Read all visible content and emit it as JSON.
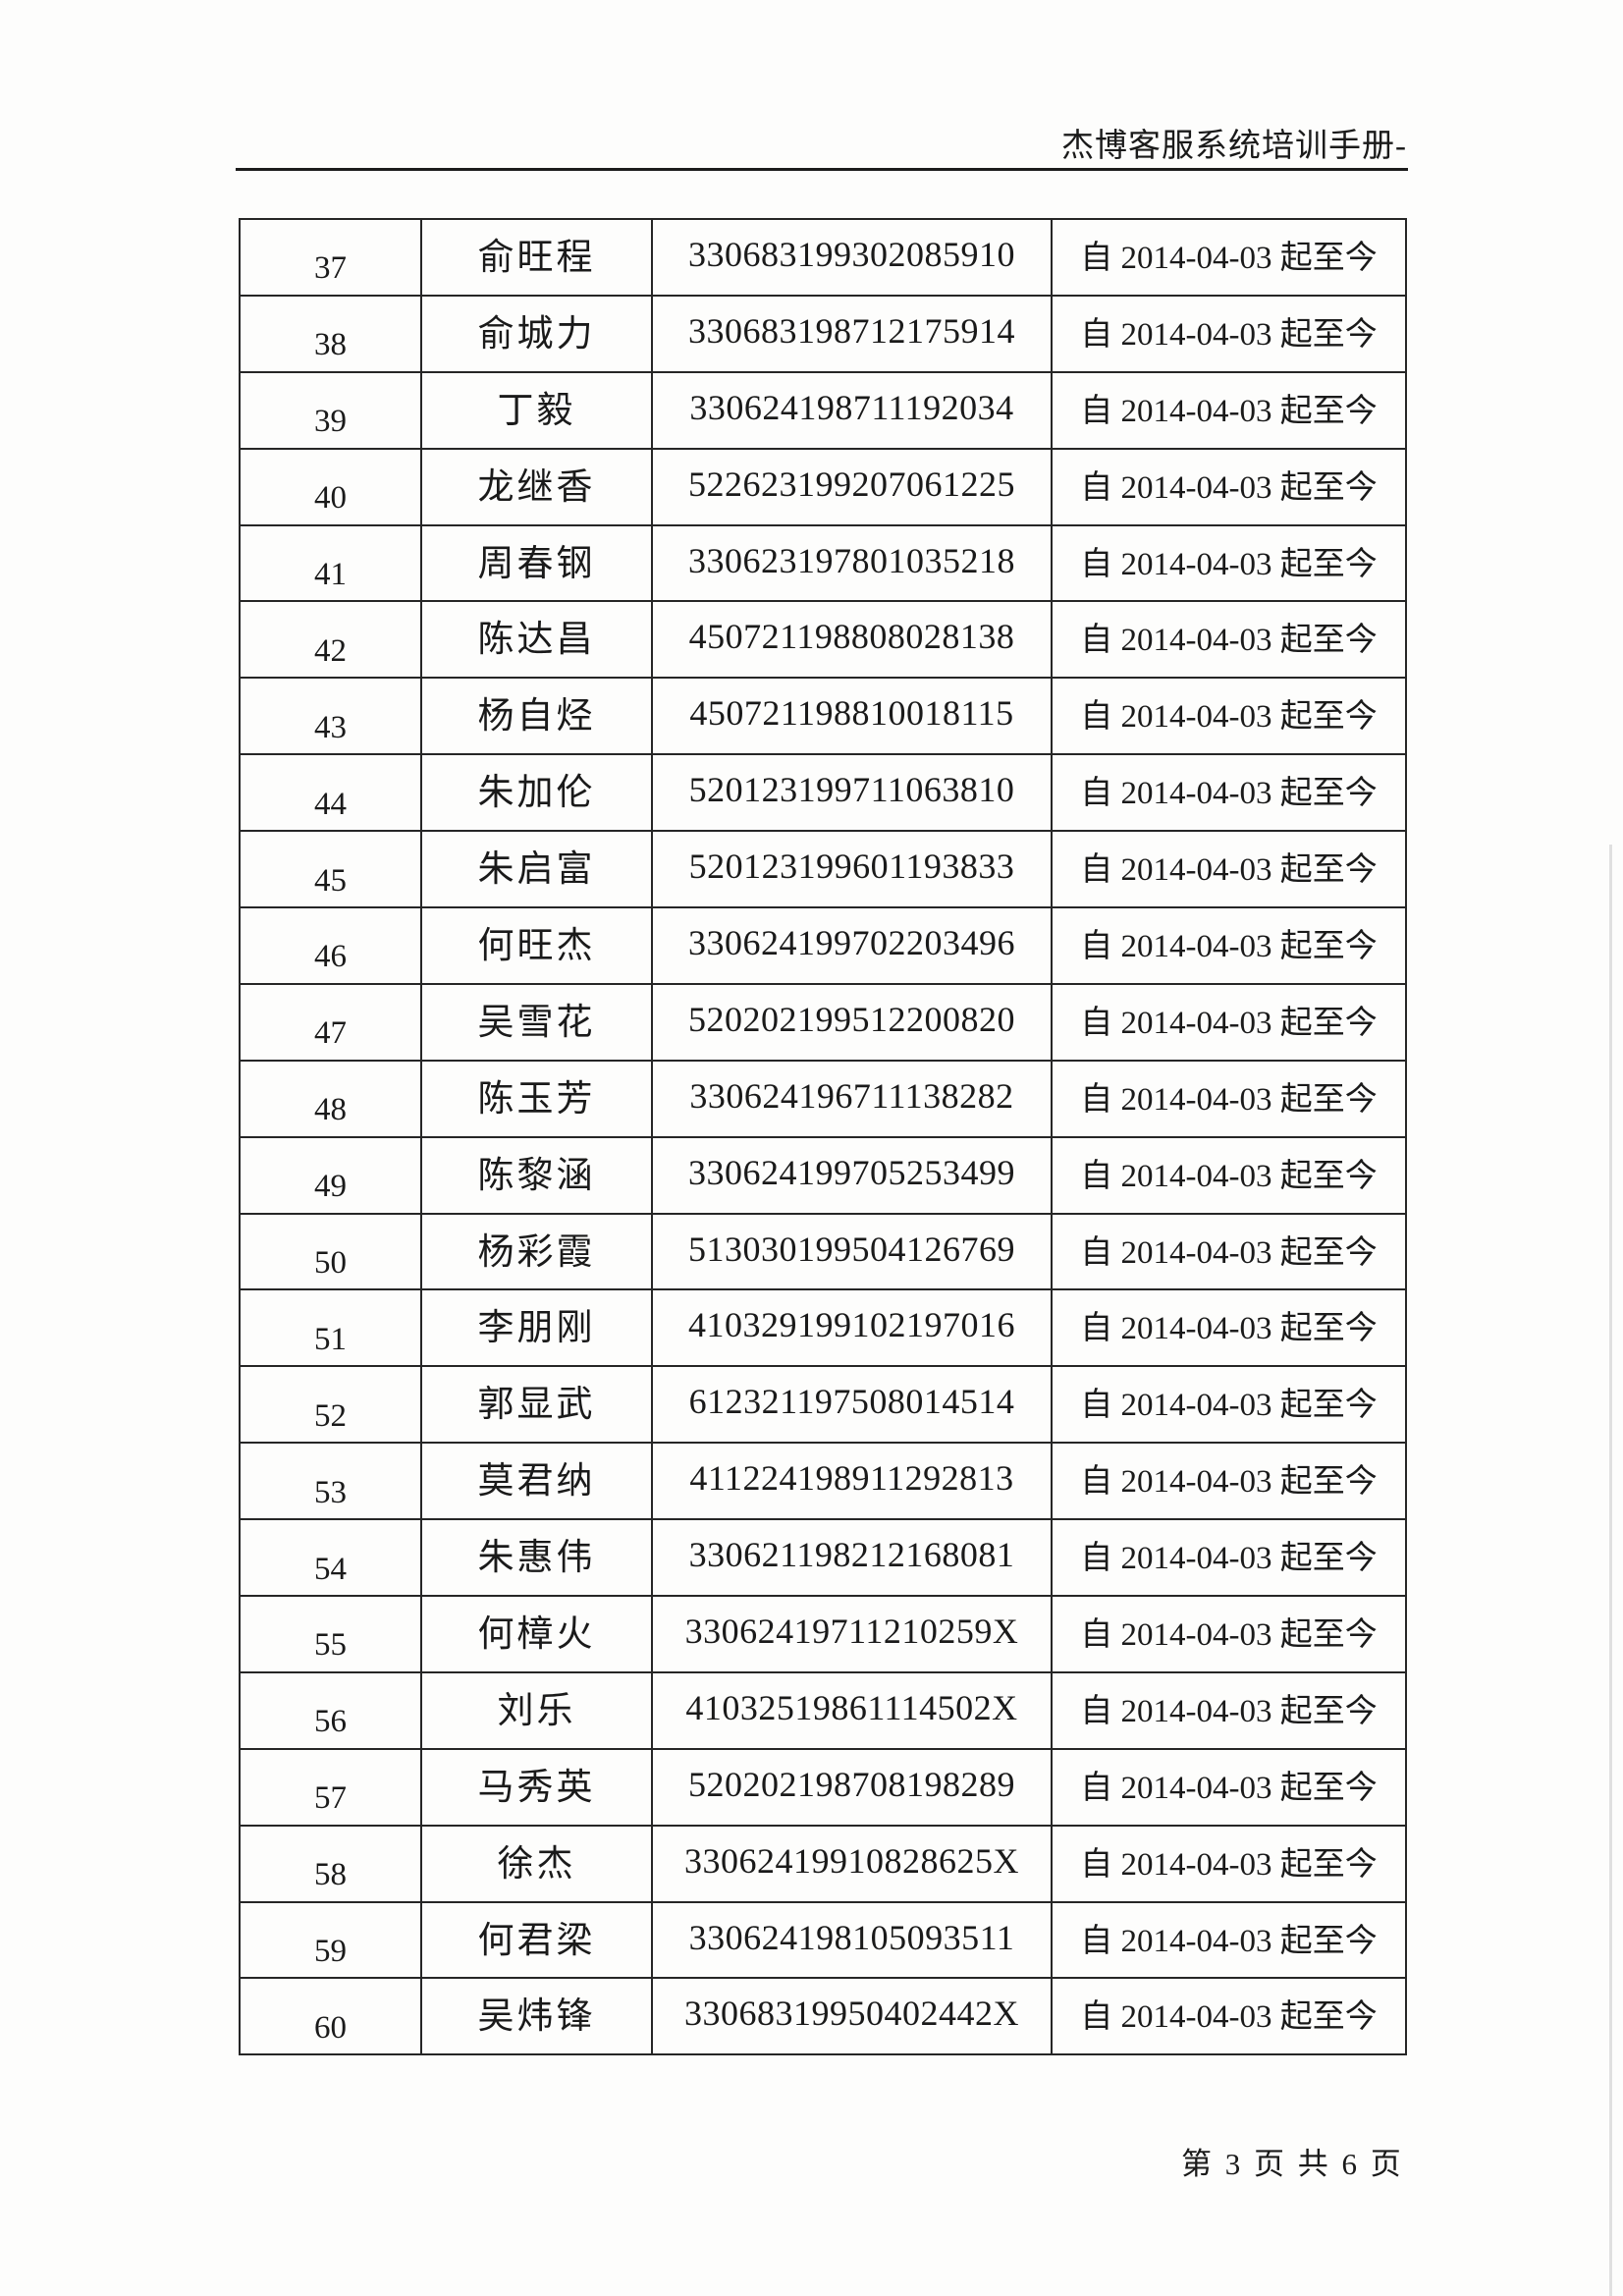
{
  "header": {
    "title": "杰博客服系统培训手册-"
  },
  "footer": {
    "page_label": "第 3 页 共 6 页"
  },
  "table": {
    "rows": [
      {
        "no": "37",
        "name": "俞旺程",
        "id": "330683199302085910",
        "period": "自 2014-04-03 起至今"
      },
      {
        "no": "38",
        "name": "俞城力",
        "id": "330683198712175914",
        "period": "自 2014-04-03 起至今"
      },
      {
        "no": "39",
        "name": "丁毅",
        "id": "330624198711192034",
        "period": "自 2014-04-03 起至今"
      },
      {
        "no": "40",
        "name": "龙继香",
        "id": "522623199207061225",
        "period": "自 2014-04-03 起至今"
      },
      {
        "no": "41",
        "name": "周春钢",
        "id": "330623197801035218",
        "period": "自 2014-04-03 起至今"
      },
      {
        "no": "42",
        "name": "陈达昌",
        "id": "450721198808028138",
        "period": "自 2014-04-03 起至今"
      },
      {
        "no": "43",
        "name": "杨自烃",
        "id": "450721198810018115",
        "period": "自 2014-04-03 起至今"
      },
      {
        "no": "44",
        "name": "朱加伦",
        "id": "520123199711063810",
        "period": "自 2014-04-03 起至今"
      },
      {
        "no": "45",
        "name": "朱启富",
        "id": "520123199601193833",
        "period": "自 2014-04-03 起至今"
      },
      {
        "no": "46",
        "name": "何旺杰",
        "id": "330624199702203496",
        "period": "自 2014-04-03 起至今"
      },
      {
        "no": "47",
        "name": "吴雪花",
        "id": "520202199512200820",
        "period": "自 2014-04-03 起至今"
      },
      {
        "no": "48",
        "name": "陈玉芳",
        "id": "330624196711138282",
        "period": "自 2014-04-03 起至今"
      },
      {
        "no": "49",
        "name": "陈黎涵",
        "id": "330624199705253499",
        "period": "自 2014-04-03 起至今"
      },
      {
        "no": "50",
        "name": "杨彩霞",
        "id": "513030199504126769",
        "period": "自 2014-04-03 起至今"
      },
      {
        "no": "51",
        "name": "李朋刚",
        "id": "410329199102197016",
        "period": "自 2014-04-03 起至今"
      },
      {
        "no": "52",
        "name": "郭显武",
        "id": "612321197508014514",
        "period": "自 2014-04-03 起至今"
      },
      {
        "no": "53",
        "name": "莫君纳",
        "id": "411224198911292813",
        "period": "自 2014-04-03 起至今"
      },
      {
        "no": "54",
        "name": "朱惠伟",
        "id": "330621198212168081",
        "period": "自 2014-04-03 起至今"
      },
      {
        "no": "55",
        "name": "何樟火",
        "id": "33062419711210259X",
        "period": "自 2014-04-03 起至今"
      },
      {
        "no": "56",
        "name": "刘乐",
        "id": "41032519861114502X",
        "period": "自 2014-04-03 起至今"
      },
      {
        "no": "57",
        "name": "马秀英",
        "id": "520202198708198289",
        "period": "自 2014-04-03 起至今"
      },
      {
        "no": "58",
        "name": "徐杰",
        "id": "33062419910828625X",
        "period": "自 2014-04-03 起至今"
      },
      {
        "no": "59",
        "name": "何君梁",
        "id": "330624198105093511",
        "period": "自 2014-04-03 起至今"
      },
      {
        "no": "60",
        "name": "吴炜锋",
        "id": "33068319950402442X",
        "period": "自 2014-04-03 起至今"
      }
    ]
  }
}
